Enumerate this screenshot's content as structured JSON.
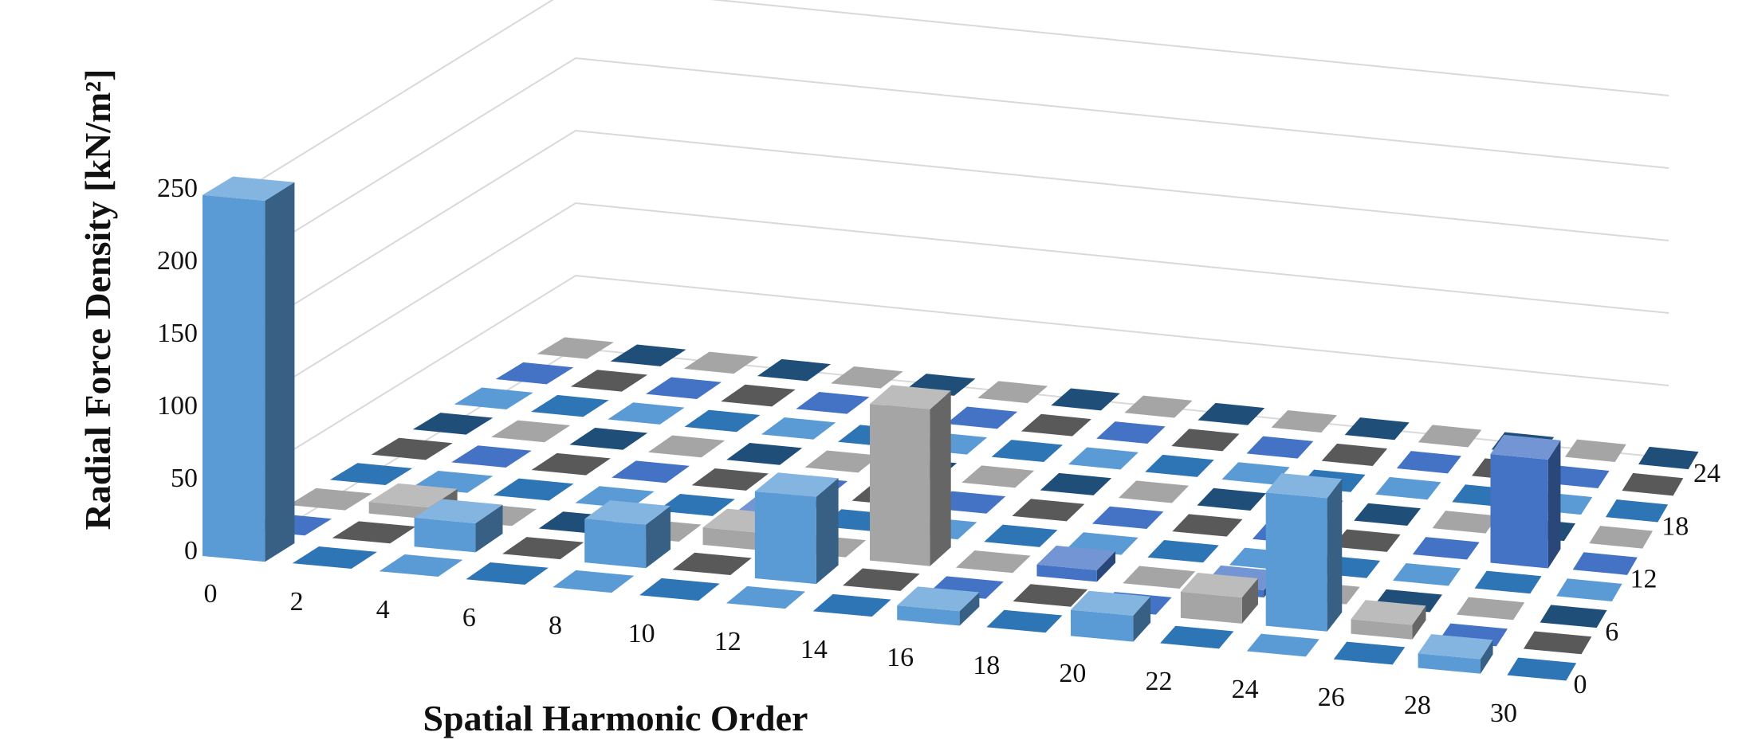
{
  "chart_data": {
    "type": "bar",
    "subtype": "3d-bar",
    "title": "",
    "xlabel": "Spatial Harmonic Order",
    "ylabel": "Radial Force Density [kN/m²]",
    "zlabel": "",
    "x_ticks": [
      "0",
      "2",
      "4",
      "6",
      "8",
      "10",
      "12",
      "14",
      "16",
      "18",
      "20",
      "22",
      "24",
      "26",
      "28",
      "30"
    ],
    "z_ticks": [
      "0",
      "6",
      "12",
      "18",
      "24"
    ],
    "y_ticks": [
      "0",
      "50",
      "100",
      "150",
      "200",
      "250"
    ],
    "ylim": [
      0,
      250
    ],
    "grid": true,
    "legend": "none",
    "colors": {
      "blue": "#5b9bd5",
      "gray": "#a5a5a5",
      "darkblue": "#2e75b6",
      "royal": "#4472c4",
      "navy": "#1f4e79",
      "charcoal": "#595959"
    },
    "bars": [
      {
        "x": 0,
        "z": 0,
        "value": 249,
        "color": "blue"
      },
      {
        "x": 2,
        "z": 6,
        "value": 8,
        "color": "gray"
      },
      {
        "x": 4,
        "z": 3,
        "value": 20,
        "color": "blue"
      },
      {
        "x": 8,
        "z": 3,
        "value": 30,
        "color": "blue"
      },
      {
        "x": 10,
        "z": 6,
        "value": 12,
        "color": "gray"
      },
      {
        "x": 10,
        "z": 9,
        "value": 5,
        "color": "royal"
      },
      {
        "x": 12,
        "z": 3,
        "value": 60,
        "color": "blue"
      },
      {
        "x": 14,
        "z": 6,
        "value": 108,
        "color": "gray"
      },
      {
        "x": 16,
        "z": 0,
        "value": 10,
        "color": "blue"
      },
      {
        "x": 18,
        "z": 6,
        "value": 8,
        "color": "royal"
      },
      {
        "x": 20,
        "z": 0,
        "value": 18,
        "color": "blue"
      },
      {
        "x": 22,
        "z": 6,
        "value": 5,
        "color": "royal"
      },
      {
        "x": 22,
        "z": 3,
        "value": 18,
        "color": "gray"
      },
      {
        "x": 24,
        "z": 3,
        "value": 92,
        "color": "blue"
      },
      {
        "x": 26,
        "z": 3,
        "value": 10,
        "color": "gray"
      },
      {
        "x": 28,
        "z": 0,
        "value": 10,
        "color": "blue"
      },
      {
        "x": 28,
        "z": 12,
        "value": 75,
        "color": "royal"
      }
    ],
    "flat_marker_colors": [
      "blue",
      "navy",
      "charcoal",
      "darkblue",
      "gray",
      "royal"
    ]
  }
}
